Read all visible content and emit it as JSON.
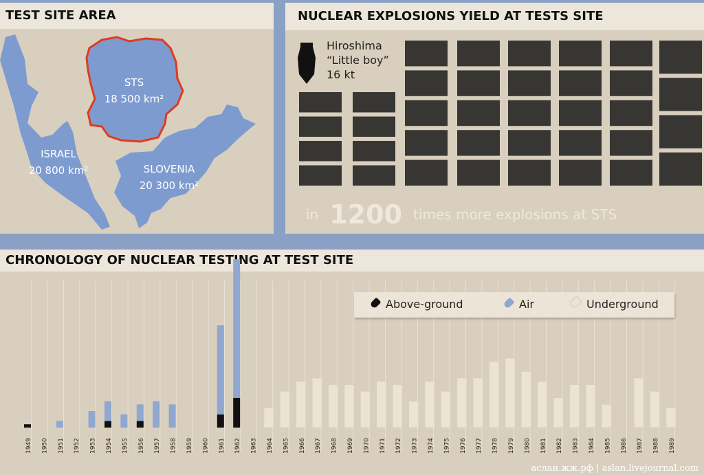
{
  "panels": {
    "area": {
      "title": "TEST SITE AREA",
      "regions": [
        {
          "name": "STS",
          "area": "18 500 km²",
          "highlight_color": "#e03a1e"
        },
        {
          "name": "ISRAEL",
          "area": "20 800 km²"
        },
        {
          "name": "SLOVENIA",
          "area": "20 300 km²"
        }
      ]
    },
    "yield": {
      "title": "NUCLEAR EXPLOSIONS YIELD AT TESTS SITE",
      "reference": {
        "line1": "Hiroshima",
        "line2": "“Little boy”",
        "line3": "16 kt",
        "icon": "bomb-icon"
      },
      "comparison": {
        "prefix": "in",
        "number": "1200",
        "suffix": "times more explosions at STS"
      }
    },
    "chronology": {
      "title": "CHRONOLOGY OF NUCLEAR TESTING AT TEST SITE"
    }
  },
  "colors": {
    "background": "#8aa0c4",
    "panel": "#d8cfbe",
    "header": "#ede7db",
    "map": "#7e9bd0",
    "above_ground": "#111111",
    "air": "#8fa7d1",
    "underground": "#ebe3d4"
  },
  "watermark": "аслан.жж.рф | aslan.livejournal.com",
  "chart_data": {
    "type": "bar",
    "stacked": true,
    "categories": [
      "1949",
      "1950",
      "1951",
      "1952",
      "1953",
      "1954",
      "1955",
      "1956",
      "1957",
      "1958",
      "1959",
      "1960",
      "1961",
      "1962",
      "1963",
      "1964",
      "1965",
      "1966",
      "1967",
      "1968",
      "1969",
      "1970",
      "1971",
      "1972",
      "1973",
      "1974",
      "1975",
      "1976",
      "1977",
      "1978",
      "1979",
      "1980",
      "1981",
      "1982",
      "1983",
      "1984",
      "1985",
      "1986",
      "1987",
      "1988",
      "1989"
    ],
    "series": [
      {
        "name": "Above-ground",
        "values": [
          1,
          0,
          0,
          0,
          0,
          2,
          0,
          2,
          0,
          0,
          0,
          0,
          4,
          9,
          0,
          0,
          0,
          0,
          0,
          0,
          0,
          0,
          0,
          0,
          0,
          0,
          0,
          0,
          0,
          0,
          0,
          0,
          0,
          0,
          0,
          0,
          0,
          0,
          0,
          0,
          0
        ]
      },
      {
        "name": "Air",
        "values": [
          0,
          0,
          2,
          0,
          5,
          6,
          4,
          5,
          8,
          7,
          0,
          0,
          27,
          42,
          0,
          0,
          0,
          0,
          0,
          0,
          0,
          0,
          0,
          0,
          0,
          0,
          0,
          0,
          0,
          0,
          0,
          0,
          0,
          0,
          0,
          0,
          0,
          0,
          0,
          0,
          0
        ]
      },
      {
        "name": "Underground",
        "values": [
          0,
          0,
          0,
          0,
          0,
          0,
          0,
          0,
          0,
          0,
          0,
          0,
          0,
          0,
          0,
          6,
          11,
          14,
          15,
          13,
          13,
          11,
          14,
          13,
          8,
          14,
          11,
          15,
          15,
          20,
          21,
          17,
          14,
          9,
          13,
          13,
          7,
          0,
          15,
          11,
          6
        ]
      }
    ],
    "legend": {
      "position": "top-right",
      "items": [
        "Above-ground",
        "Air",
        "Underground"
      ]
    }
  }
}
